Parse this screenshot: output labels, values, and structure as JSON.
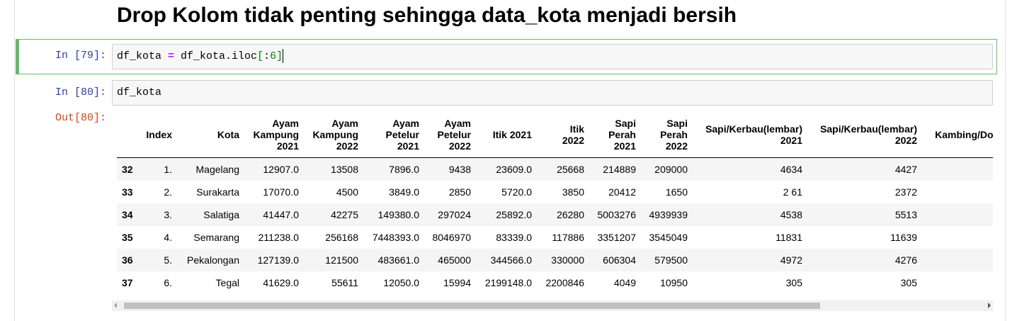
{
  "header": {
    "title": "Drop Kolom tidak penting sehingga data_kota menjadi bersih"
  },
  "cells": [
    {
      "prompt": "In [79]:",
      "code": [
        "df_kota ",
        "=",
        " df_kota.iloc",
        "[",
        ":",
        "6",
        "]"
      ]
    },
    {
      "prompt": "In [80]:",
      "code": [
        "df_kota"
      ],
      "out_prompt": "Out[80]:",
      "table": {
        "columns": [
          "Index",
          "Kota",
          "Ayam\nKampung\n2021",
          "Ayam\nKampung\n2022",
          "Ayam\nPetelur\n2021",
          "Ayam\nPetelur\n2022",
          "Itik 2021",
          "Itik\n2022",
          "Sapi\nPerah\n2021",
          "Sapi\nPerah\n2022",
          "Sapi/Kerbau(lembar)\n2021",
          "Sapi/Kerbau(lembar)\n2022",
          "Kambing/Dom"
        ],
        "rows": [
          {
            "index": "32",
            "cells": [
              "1.",
              "Magelang",
              "12907.0",
              "13508",
              "7896.0",
              "9438",
              "23609.0",
              "25668",
              "214889",
              "209000",
              "4634",
              "4427"
            ]
          },
          {
            "index": "33",
            "cells": [
              "2.",
              "Surakarta",
              "17070.0",
              "4500",
              "3849.0",
              "2850",
              "5720.0",
              "3850",
              "20412",
              "1650",
              "2 61",
              "2372"
            ]
          },
          {
            "index": "34",
            "cells": [
              "3.",
              "Salatiga",
              "41447.0",
              "42275",
              "149380.0",
              "297024",
              "25892.0",
              "26280",
              "5003276",
              "4939939",
              "4538",
              "5513"
            ]
          },
          {
            "index": "35",
            "cells": [
              "4.",
              "Semarang",
              "211238.0",
              "256168",
              "7448393.0",
              "8046970",
              "83339.0",
              "117886",
              "3351207",
              "3545049",
              "11831",
              "11639"
            ]
          },
          {
            "index": "36",
            "cells": [
              "5.",
              "Pekalongan",
              "127139.0",
              "121500",
              "483661.0",
              "465000",
              "344566.0",
              "330000",
              "606304",
              "579500",
              "4972",
              "4276"
            ]
          },
          {
            "index": "37",
            "cells": [
              "6.",
              "Tegal",
              "41629.0",
              "55611",
              "12050.0",
              "15994",
              "2199148.0",
              "2200846",
              "4049",
              "10950",
              "305",
              "305"
            ]
          }
        ]
      }
    }
  ]
}
